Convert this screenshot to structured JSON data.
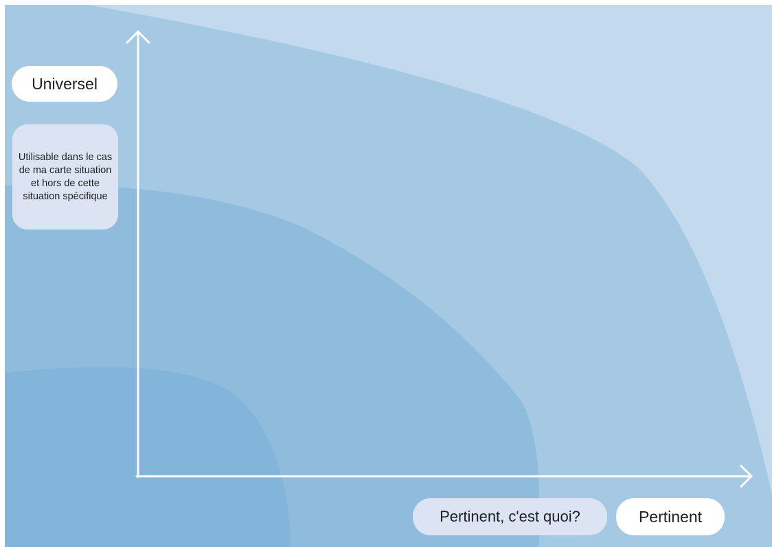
{
  "diagram": {
    "colors": {
      "page_background": "#ffffff",
      "zone_outer": "#c3daee",
      "zone_2": "#a5c8e3",
      "zone_3": "#8fbcdd",
      "zone_inner": "#82b5d9",
      "axis": "#ffffff",
      "label_background": "#ffffff",
      "question_background": "#dce4f3"
    },
    "y_axis": {
      "label": "Universel",
      "description": "Utilisable dans le cas de ma carte situation et hors de cette situation spécifique"
    },
    "x_axis": {
      "label": "Pertinent",
      "question": "Pertinent, c'est quoi?"
    }
  }
}
